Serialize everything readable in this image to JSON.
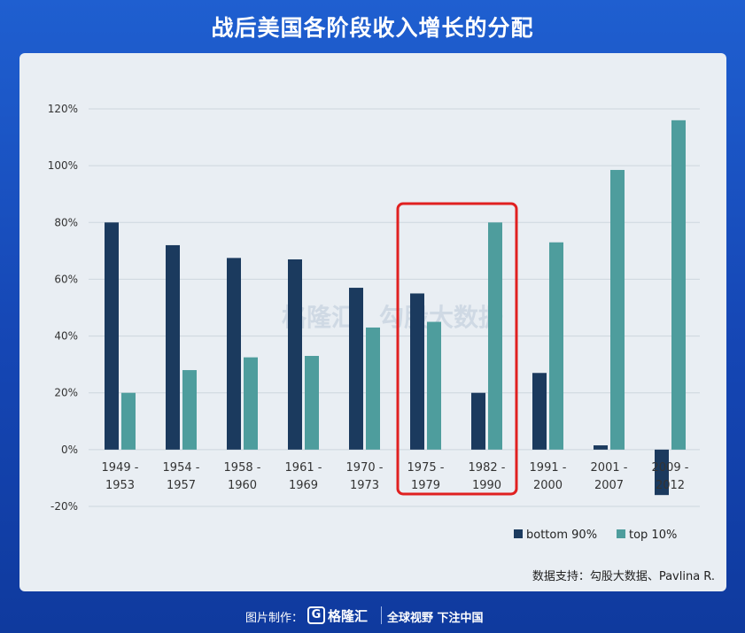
{
  "title": "战后美国各阶段收入增长的分配",
  "chart_data": {
    "type": "bar",
    "categories": [
      [
        "1949 -",
        "1953"
      ],
      [
        "1954 -",
        "1957"
      ],
      [
        "1958 -",
        "1960"
      ],
      [
        "1961 -",
        "1969"
      ],
      [
        "1970 -",
        "1973"
      ],
      [
        "1975 -",
        "1979"
      ],
      [
        "1982 -",
        "1990"
      ],
      [
        "1991 -",
        "2000"
      ],
      [
        "2001 -",
        "2007"
      ],
      [
        "2009 -",
        "2012"
      ]
    ],
    "series": [
      {
        "name": "bottom 90%",
        "color": "#1b3a5e",
        "values": [
          80,
          72,
          67.5,
          67,
          57,
          55,
          20,
          27,
          1.5,
          -16
        ]
      },
      {
        "name": "top 10%",
        "color": "#4e9d9d",
        "values": [
          20,
          28,
          32.5,
          33,
          43,
          45,
          80,
          73,
          98.5,
          116
        ]
      }
    ],
    "ylim": [
      -20,
      120
    ],
    "yticks": [
      -20,
      0,
      20,
      40,
      60,
      80,
      100,
      120
    ],
    "ytick_labels": [
      "-20%",
      "0%",
      "20%",
      "40%",
      "60%",
      "80%",
      "100%",
      "120%"
    ],
    "grid": true,
    "legend_position": "bottom-right",
    "highlight_categories": [
      5,
      6
    ],
    "highlight_color": "#e02020",
    "watermark_text": [
      "格隆汇",
      "勾股大数据"
    ]
  },
  "source": "数据支持：勾股大数据、Pavlina R.",
  "footer": {
    "made_by": "图片制作：",
    "logo_text": "格隆汇",
    "logo_mark": "G",
    "slogan": "全球视野 下注中国"
  }
}
